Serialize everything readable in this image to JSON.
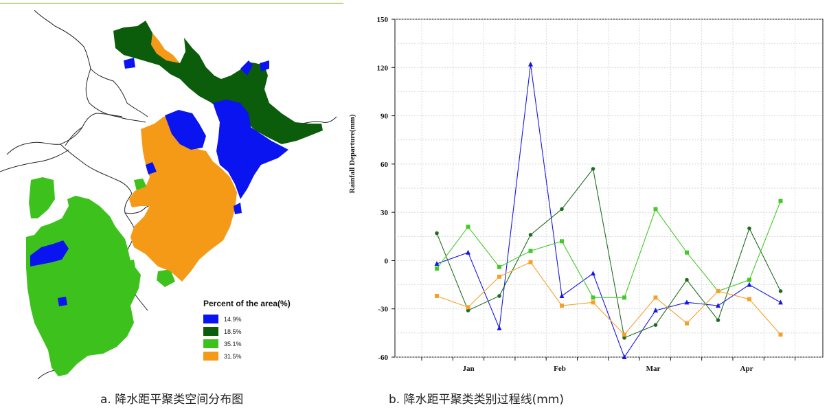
{
  "captions": {
    "a": "a. 降水距平聚类空间分布图",
    "b": "b. 降水距平聚类类别过程线(mm)"
  },
  "map": {
    "legend_title": "Percent of the area(%)",
    "legend": [
      {
        "label": "14.9%",
        "color": "#0a14f0"
      },
      {
        "label": "18.5%",
        "color": "#0b5c0b"
      },
      {
        "label": "35.1%",
        "color": "#3dc21d"
      },
      {
        "label": "31.5%",
        "color": "#f59a16"
      }
    ]
  },
  "chart_data": {
    "type": "line",
    "ylabel": "Rainfall Departure(mm)",
    "xlabel": "",
    "ylim": [
      -60,
      150
    ],
    "yticks": [
      150,
      120,
      90,
      60,
      30,
      0,
      -30,
      -60
    ],
    "month_labels": [
      "Jan",
      "Feb",
      "Mar",
      "Apr"
    ],
    "grid": true,
    "x": [
      1,
      2,
      3,
      4,
      5,
      6,
      7,
      8,
      9,
      10,
      11,
      12
    ],
    "series": [
      {
        "color": "#1616e8",
        "marker": "triangle",
        "values": [
          -2,
          5,
          -42,
          122,
          -22,
          -8,
          -60,
          -31,
          -26,
          -28,
          -15,
          -26
        ]
      },
      {
        "color": "#1f6e1f",
        "marker": "circle",
        "values": [
          17,
          -31,
          -22,
          16,
          32,
          57,
          -48,
          -40,
          -12,
          -37,
          20,
          -19
        ]
      },
      {
        "color": "#44c928",
        "marker": "square",
        "values": [
          -5,
          21,
          -4,
          6,
          12,
          -23,
          -23,
          32,
          5,
          -19,
          -12,
          37
        ]
      },
      {
        "color": "#f5a02a",
        "marker": "square",
        "values": [
          -22,
          -29,
          -10,
          -1,
          -28,
          -26,
          -46,
          -23,
          -39,
          -19,
          -24,
          -46
        ]
      }
    ]
  }
}
